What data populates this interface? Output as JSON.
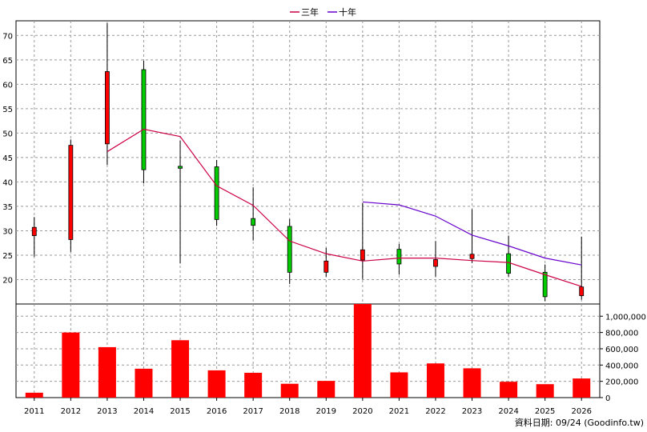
{
  "legend": [
    {
      "label": "三年",
      "color": "#cc0044"
    },
    {
      "label": "十年",
      "color": "#6600cc"
    }
  ],
  "footer": "資料日期: 09/24 (Goodinfo.tw)",
  "colors": {
    "up_candle": "#ff0000",
    "down_candle": "#00cc00",
    "volume_bar": "#ff0000",
    "grid": "#999999"
  },
  "chart_data": {
    "type": "candlestick-with-volume",
    "categories": [
      "2011",
      "2012",
      "2013",
      "2014",
      "2015",
      "2016",
      "2017",
      "2018",
      "2019",
      "2020",
      "2021",
      "2022",
      "2023",
      "2024",
      "2025",
      "2026"
    ],
    "price_axis": {
      "ylim": [
        15,
        73
      ],
      "ticks": [
        20,
        25,
        30,
        35,
        40,
        45,
        50,
        55,
        60,
        65,
        70
      ]
    },
    "volume_axis": {
      "ylim": [
        0,
        1150000
      ],
      "ticks": [
        0,
        200000,
        400000,
        600000,
        800000,
        1000000
      ],
      "tick_labels": [
        "0",
        "200,000",
        "400,000",
        "600,000",
        "800,000",
        "1,000,000"
      ]
    },
    "candles": [
      {
        "year": "2011",
        "open": 29.0,
        "high": 32.8,
        "low": 24.7,
        "close": 30.7
      },
      {
        "year": "2012",
        "open": 28.2,
        "high": 48.7,
        "low": 25.7,
        "close": 47.5
      },
      {
        "year": "2013",
        "open": 47.8,
        "high": 72.5,
        "low": 43.5,
        "close": 62.6
      },
      {
        "year": "2014",
        "open": 63.0,
        "high": 64.8,
        "low": 39.7,
        "close": 42.5
      },
      {
        "year": "2015",
        "open": 43.2,
        "high": 48.5,
        "low": 23.3,
        "close": 42.8
      },
      {
        "year": "2016",
        "open": 43.1,
        "high": 44.5,
        "low": 31.0,
        "close": 32.3
      },
      {
        "year": "2017",
        "open": 32.5,
        "high": 38.9,
        "low": 28.0,
        "close": 31.1
      },
      {
        "year": "2018",
        "open": 30.9,
        "high": 32.4,
        "low": 19.1,
        "close": 21.5
      },
      {
        "year": "2019",
        "open": 21.5,
        "high": 26.5,
        "low": 20.6,
        "close": 23.8
      },
      {
        "year": "2020",
        "open": 24.0,
        "high": 35.7,
        "low": 20.1,
        "close": 26.1
      },
      {
        "year": "2021",
        "open": 26.2,
        "high": 27.3,
        "low": 21.0,
        "close": 23.2
      },
      {
        "year": "2022",
        "open": 22.7,
        "high": 27.9,
        "low": 20.6,
        "close": 24.1
      },
      {
        "year": "2023",
        "open": 24.3,
        "high": 34.4,
        "low": 23.4,
        "close": 25.2
      },
      {
        "year": "2024",
        "open": 25.3,
        "high": 29.0,
        "low": 20.6,
        "close": 21.3
      },
      {
        "year": "2025",
        "open": 21.5,
        "high": 23.1,
        "low": 15.6,
        "close": 16.5
      },
      {
        "year": "2026",
        "open": 16.7,
        "high": 28.8,
        "low": 15.9,
        "close": 18.5
      }
    ],
    "volume": [
      60000,
      800000,
      620000,
      355000,
      705000,
      335000,
      305000,
      170000,
      205000,
      1180000,
      310000,
      420000,
      360000,
      195000,
      165000,
      235000
    ],
    "series": [
      {
        "name": "三年",
        "color": "#cc0044",
        "x": [
          "2013",
          "2014",
          "2015",
          "2016",
          "2017",
          "2018",
          "2019",
          "2020",
          "2021",
          "2022",
          "2023",
          "2024",
          "2025",
          "2026"
        ],
        "values": [
          46.2,
          50.8,
          49.3,
          39.2,
          35.2,
          27.9,
          25.3,
          23.8,
          24.4,
          24.4,
          23.9,
          23.5,
          21.0,
          18.6
        ]
      },
      {
        "name": "十年",
        "color": "#6600cc",
        "x": [
          "2020",
          "2021",
          "2022",
          "2023",
          "2024",
          "2025",
          "2026"
        ],
        "values": [
          35.9,
          35.3,
          33.0,
          29.1,
          26.9,
          24.4,
          23.0
        ]
      }
    ]
  }
}
